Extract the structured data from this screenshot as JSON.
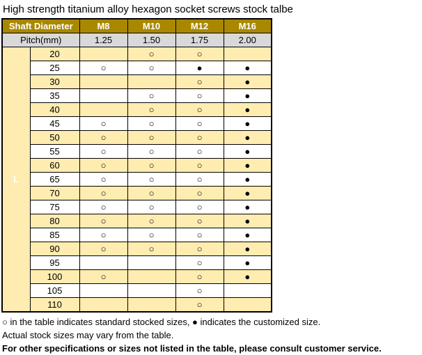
{
  "title": "High strength titanium alloy hexagon socket screws stock talbe",
  "table": {
    "header": {
      "shaft_label": "Shaft Diameter",
      "columns": [
        "M8",
        "M10",
        "M12",
        "M16"
      ]
    },
    "pitch": {
      "label": "Pitch(mm)",
      "values": [
        "1.25",
        "1.50",
        "1.75",
        "2.00"
      ]
    },
    "row_group_label": "L",
    "rows": [
      {
        "length": "20",
        "cells": [
          "",
          "○",
          "○",
          ""
        ]
      },
      {
        "length": "25",
        "cells": [
          "○",
          "○",
          "●",
          "●"
        ]
      },
      {
        "length": "30",
        "cells": [
          "",
          "",
          "○",
          "●"
        ]
      },
      {
        "length": "35",
        "cells": [
          "",
          "○",
          "○",
          "●"
        ]
      },
      {
        "length": "40",
        "cells": [
          "",
          "○",
          "○",
          "●"
        ]
      },
      {
        "length": "45",
        "cells": [
          "○",
          "○",
          "○",
          "●"
        ]
      },
      {
        "length": "50",
        "cells": [
          "○",
          "○",
          "○",
          "●"
        ]
      },
      {
        "length": "55",
        "cells": [
          "○",
          "○",
          "○",
          "●"
        ]
      },
      {
        "length": "60",
        "cells": [
          "○",
          "○",
          "○",
          "●"
        ]
      },
      {
        "length": "65",
        "cells": [
          "○",
          "○",
          "○",
          "●"
        ]
      },
      {
        "length": "70",
        "cells": [
          "○",
          "○",
          "○",
          "●"
        ]
      },
      {
        "length": "75",
        "cells": [
          "○",
          "○",
          "○",
          "●"
        ]
      },
      {
        "length": "80",
        "cells": [
          "○",
          "○",
          "○",
          "●"
        ]
      },
      {
        "length": "85",
        "cells": [
          "○",
          "○",
          "○",
          "●"
        ]
      },
      {
        "length": "90",
        "cells": [
          "○",
          "○",
          "○",
          "●"
        ]
      },
      {
        "length": "95",
        "cells": [
          "",
          "",
          "○",
          "●"
        ]
      },
      {
        "length": "100",
        "cells": [
          "○",
          "",
          "○",
          "●"
        ]
      },
      {
        "length": "105",
        "cells": [
          "",
          "",
          "○",
          ""
        ]
      },
      {
        "length": "110",
        "cells": [
          "",
          "",
          "○",
          ""
        ]
      }
    ]
  },
  "notes": [
    "○ in the table indicates standard stocked sizes, ● indicates the customized size.",
    "Actual stock sizes may vary from the table.",
    "For other specifications or sizes not listed in the table, please consult customer service."
  ],
  "legend_symbols": {
    "stocked": "○",
    "customized": "●"
  },
  "colors": {
    "header_gold": "#A98800",
    "row_stripe": "#FFECB0",
    "pitch_gray": "#D9D9D9",
    "border": "#000000",
    "header_text": "#ffffff"
  }
}
